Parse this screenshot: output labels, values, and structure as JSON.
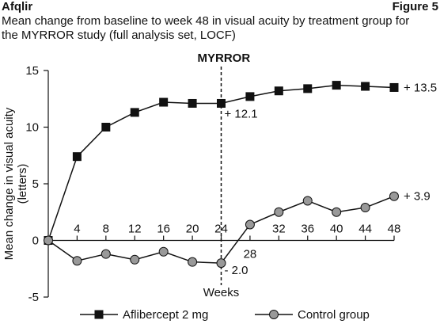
{
  "header": {
    "left": "Afqlir",
    "right": "Figure 5",
    "subtitle": "Mean change from baseline to week 48 in visual acuity by treatment group for the MYRROR study (full analysis set, LOCF)"
  },
  "chart_data": {
    "type": "line",
    "study_marker": {
      "label": "MYRROR",
      "x": 24
    },
    "xlabel": "Weeks",
    "ylabel": "Mean change in visual acuity (letters)",
    "xlim": [
      0,
      48
    ],
    "ylim": [
      -5,
      15
    ],
    "yticks": [
      15,
      10,
      5,
      0,
      -5
    ],
    "xticks": [
      4,
      8,
      12,
      16,
      20,
      24,
      28,
      32,
      36,
      40,
      44,
      48
    ],
    "series": [
      {
        "name": "Aflibercept 2 mg",
        "marker": "square",
        "color": "#111111",
        "x": [
          0,
          4,
          8,
          12,
          16,
          20,
          24,
          28,
          32,
          36,
          40,
          44,
          48
        ],
        "y": [
          0,
          7.4,
          10.0,
          11.3,
          12.2,
          12.1,
          12.1,
          12.7,
          13.2,
          13.4,
          13.7,
          13.6,
          13.5
        ]
      },
      {
        "name": "Control group",
        "marker": "circle",
        "color": "#999999",
        "x": [
          0,
          4,
          8,
          12,
          16,
          20,
          24,
          28,
          32,
          36,
          40,
          44,
          48
        ],
        "y": [
          0,
          -1.8,
          -1.2,
          -1.7,
          -1.0,
          -1.9,
          -2.0,
          1.4,
          2.5,
          3.5,
          2.5,
          2.9,
          3.9
        ]
      }
    ],
    "annotations": [
      {
        "text": "+ 13.5",
        "x": 48,
        "y": 13.5
      },
      {
        "text": "+ 12.1",
        "x": 24,
        "y": 12.1
      },
      {
        "text": "+ 3.9",
        "x": 48,
        "y": 3.9
      },
      {
        "text": "- 2.0",
        "x": 24,
        "y": -2.0
      }
    ]
  }
}
